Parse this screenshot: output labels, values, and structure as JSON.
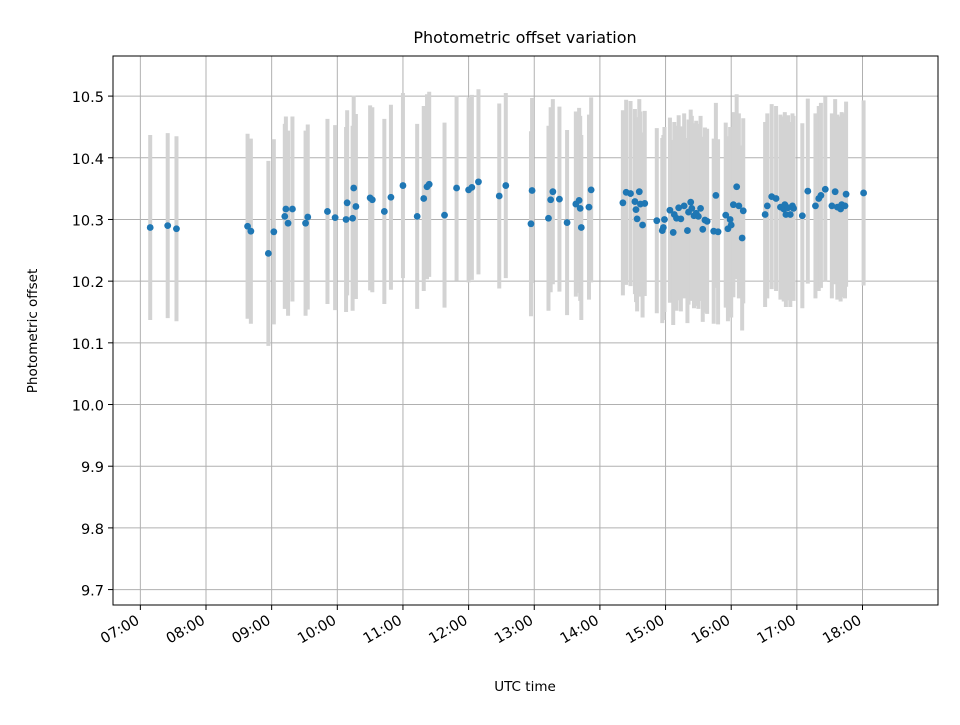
{
  "chart_data": {
    "type": "scatter",
    "title": "Photometric offset variation",
    "xlabel": "UTC time",
    "ylabel": "Photometric offset",
    "xlim": [
      "06:35",
      "19:09"
    ],
    "ylim": [
      9.675,
      10.565
    ],
    "xticks": [
      "07:00",
      "08:00",
      "09:00",
      "10:00",
      "11:00",
      "12:00",
      "13:00",
      "14:00",
      "15:00",
      "16:00",
      "17:00",
      "18:00"
    ],
    "yticks": [
      9.7,
      9.8,
      9.9,
      10.0,
      10.1,
      10.2,
      10.3,
      10.4,
      10.5
    ],
    "ytick_labels": [
      "9.7",
      "9.8",
      "9.9",
      "10.0",
      "10.1",
      "10.2",
      "10.3",
      "10.4",
      "10.5"
    ],
    "grid": true,
    "colors": {
      "point": "#1f77b4",
      "errorbar": "#d3d3d3",
      "grid": "#b0b0b0",
      "axes": "#000000"
    },
    "series": [
      {
        "x": [
          "07:09",
          "07:25",
          "07:33",
          "08:38",
          "08:41",
          "08:57",
          "09:02",
          "09:12",
          "09:13",
          "09:15",
          "09:19",
          "09:31",
          "09:33",
          "09:51",
          "09:58",
          "10:08",
          "10:09",
          "10:14",
          "10:15",
          "10:17",
          "10:30",
          "10:32",
          "10:43",
          "10:49",
          "11:00",
          "11:13",
          "11:19",
          "11:22",
          "11:24",
          "11:38",
          "11:49",
          "12:00",
          "12:03",
          "12:09",
          "12:28",
          "12:34",
          "12:57",
          "12:58",
          "13:13",
          "13:15",
          "13:17",
          "13:23",
          "13:30",
          "13:38",
          "13:41",
          "13:42",
          "13:43",
          "13:50",
          "13:52",
          "14:21",
          "14:24",
          "14:28",
          "14:32",
          "14:33",
          "14:34",
          "14:36",
          "14:37",
          "14:39",
          "14:41",
          "14:52",
          "14:57",
          "14:58",
          "14:59",
          "15:04",
          "15:07",
          "15:08",
          "15:10",
          "15:12",
          "15:14",
          "15:17",
          "15:20",
          "15:21",
          "15:23",
          "15:24",
          "15:26",
          "15:28",
          "15:30",
          "15:32",
          "15:34",
          "15:36",
          "15:38",
          "15:44",
          "15:46",
          "15:48",
          "15:55",
          "15:57",
          "15:59",
          "16:00",
          "16:02",
          "16:05",
          "16:07",
          "16:10",
          "16:11",
          "16:31",
          "16:33",
          "16:37",
          "16:41",
          "16:45",
          "16:48",
          "16:49",
          "16:50",
          "16:52",
          "16:54",
          "16:56",
          "16:57",
          "17:05",
          "17:10",
          "17:17",
          "17:20",
          "17:22",
          "17:26",
          "17:32",
          "17:35",
          "17:37",
          "17:40",
          "17:41",
          "17:44",
          "17:45",
          "18:01"
        ],
        "y": [
          10.287,
          10.29,
          10.285,
          10.289,
          10.281,
          10.245,
          10.28,
          10.305,
          10.317,
          10.294,
          10.317,
          10.294,
          10.304,
          10.313,
          10.303,
          10.3,
          10.327,
          10.302,
          10.351,
          10.321,
          10.335,
          10.332,
          10.313,
          10.336,
          10.355,
          10.305,
          10.334,
          10.353,
          10.357,
          10.307,
          10.351,
          10.348,
          10.352,
          10.361,
          10.338,
          10.355,
          10.293,
          10.347,
          10.302,
          10.332,
          10.345,
          10.333,
          10.295,
          10.325,
          10.331,
          10.318,
          10.287,
          10.32,
          10.348,
          10.327,
          10.344,
          10.342,
          10.329,
          10.316,
          10.301,
          10.345,
          10.325,
          10.291,
          10.326,
          10.298,
          10.282,
          10.287,
          10.3,
          10.315,
          10.279,
          10.308,
          10.302,
          10.319,
          10.301,
          10.322,
          10.282,
          10.312,
          10.328,
          10.318,
          10.306,
          10.31,
          10.305,
          10.318,
          10.284,
          10.299,
          10.297,
          10.281,
          10.339,
          10.28,
          10.307,
          10.285,
          10.3,
          10.291,
          10.324,
          10.353,
          10.322,
          10.27,
          10.314,
          10.308,
          10.322,
          10.337,
          10.334,
          10.32,
          10.317,
          10.324,
          10.308,
          10.319,
          10.308,
          10.322,
          10.318,
          10.306,
          10.346,
          10.322,
          10.334,
          10.339,
          10.349,
          10.322,
          10.345,
          10.32,
          10.317,
          10.324,
          10.322,
          10.341,
          10.343
        ]
      }
    ]
  }
}
